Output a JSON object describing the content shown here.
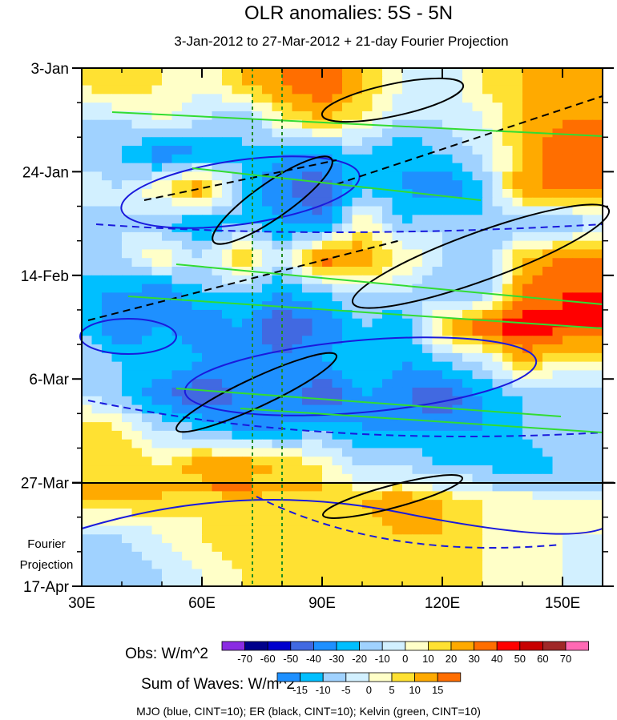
{
  "chart_data": {
    "type": "heatmap",
    "title": "OLR anomalies: 5S - 5N",
    "subtitle": "3-Jan-2012 to 27-Mar-2012 + 21-day Fourier Projection",
    "x_ticks": [
      "30E",
      "60E",
      "90E",
      "120E",
      "150E"
    ],
    "x_tick_values": [
      30,
      60,
      90,
      120,
      150
    ],
    "xlim": [
      30,
      160
    ],
    "y_ticks": [
      "3-Jan",
      "24-Jan",
      "14-Feb",
      "6-Mar",
      "27-Mar",
      "17-Apr"
    ],
    "y_tick_days": [
      0,
      21,
      42,
      63,
      84,
      105
    ],
    "ylim_days": [
      0,
      105
    ],
    "projection_label": [
      "Fourier",
      "Projection"
    ],
    "observed_end_day": 84,
    "reference_longitudes": [
      72,
      80
    ],
    "grid_lon": [
      30,
      40,
      50,
      60,
      70,
      80,
      90,
      100,
      110,
      120,
      130,
      140,
      150,
      160
    ],
    "grid_day": [
      3.5,
      10.5,
      17.5,
      24.5,
      31.5,
      38.5,
      45.5,
      52.5,
      59.5,
      66.5,
      73.5,
      80.5,
      87.5,
      94.5,
      101.5
    ],
    "values": [
      [
        10,
        20,
        10,
        0,
        20,
        30,
        40,
        20,
        0,
        -10,
        10,
        20,
        20,
        20
      ],
      [
        -10,
        -10,
        0,
        -10,
        -20,
        10,
        20,
        10,
        -10,
        -10,
        0,
        20,
        30,
        30
      ],
      [
        -20,
        -20,
        -40,
        -30,
        -20,
        -30,
        -30,
        -20,
        -30,
        -20,
        -10,
        20,
        40,
        40
      ],
      [
        0,
        -10,
        10,
        30,
        -20,
        -40,
        -50,
        -20,
        -30,
        -40,
        -20,
        30,
        30,
        30
      ],
      [
        -20,
        -10,
        -20,
        -30,
        -20,
        -30,
        -40,
        10,
        -20,
        -10,
        -20,
        -20,
        -20,
        -10
      ],
      [
        -10,
        -10,
        10,
        -10,
        20,
        -10,
        40,
        30,
        10,
        -10,
        -20,
        20,
        30,
        30
      ],
      [
        -30,
        -30,
        -40,
        -20,
        -20,
        -30,
        -20,
        -10,
        -10,
        -20,
        -20,
        30,
        40,
        40
      ],
      [
        -20,
        -40,
        -30,
        -40,
        -30,
        -50,
        -40,
        -20,
        -30,
        20,
        40,
        50,
        40,
        40
      ],
      [
        -10,
        -20,
        -20,
        -30,
        -30,
        -40,
        -30,
        -20,
        -30,
        -20,
        -10,
        20,
        10,
        10
      ],
      [
        -10,
        -20,
        -40,
        -50,
        -40,
        -30,
        -50,
        -30,
        -40,
        -50,
        -30,
        -20,
        -20,
        -20
      ],
      [
        20,
        10,
        -10,
        -20,
        -30,
        -30,
        -20,
        -30,
        -30,
        -30,
        -30,
        -20,
        -10,
        -10
      ],
      [
        10,
        20,
        10,
        30,
        30,
        20,
        10,
        -10,
        -10,
        -20,
        -20,
        -30,
        -20,
        -20
      ],
      [
        10,
        10,
        10,
        5,
        10,
        5,
        10,
        10,
        15,
        10,
        5,
        5,
        0,
        0
      ],
      [
        -5,
        -5,
        0,
        5,
        10,
        10,
        5,
        5,
        10,
        10,
        5,
        0,
        0,
        0
      ],
      [
        -10,
        -10,
        -5,
        0,
        5,
        5,
        5,
        5,
        5,
        10,
        5,
        0,
        0,
        -5
      ]
    ],
    "obs_colorbar": {
      "label": "Obs: W/m^2",
      "levels": [
        "-70",
        "-60",
        "-50",
        "-40",
        "-30",
        "-20",
        "-10",
        "0",
        "10",
        "20",
        "30",
        "40",
        "50",
        "60",
        "70"
      ],
      "colors": [
        "#8a2be2",
        "#00008b",
        "#0000cd",
        "#4169e1",
        "#1e90ff",
        "#00bfff",
        "#a0d2ff",
        "#d2f0ff",
        "#ffffc8",
        "#ffe132",
        "#ffaa00",
        "#ff6e00",
        "#ff0000",
        "#c80000",
        "#a02828",
        "#ff69b4"
      ]
    },
    "waves_colorbar": {
      "label": "Sum of Waves: W/m^2",
      "levels": [
        "-15",
        "-10",
        "-5",
        "0",
        "5",
        "10",
        "15"
      ],
      "colors": [
        "#1e90ff",
        "#00bfff",
        "#a0d2ff",
        "#d2f0ff",
        "#ffffc8",
        "#ffe132",
        "#ffaa00",
        "#ff6e00"
      ]
    },
    "footer": "MJO (blue, CINT=10); ER (black, CINT=10); Kelvin (green, CINT=10)"
  }
}
